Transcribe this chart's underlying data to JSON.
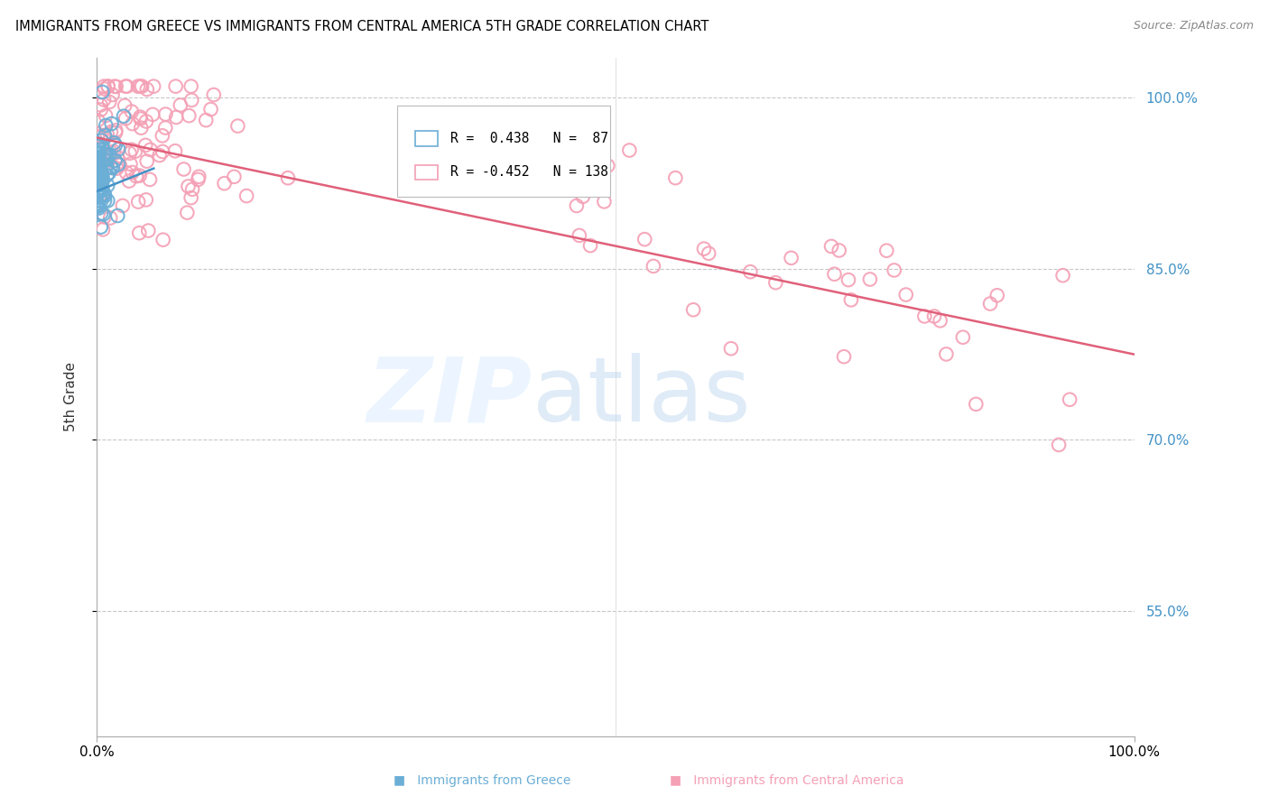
{
  "title": "IMMIGRANTS FROM GREECE VS IMMIGRANTS FROM CENTRAL AMERICA 5TH GRADE CORRELATION CHART",
  "source": "Source: ZipAtlas.com",
  "ylabel": "5th Grade",
  "color_blue": "#6baed6",
  "color_pink": "#f4a0b5",
  "color_trendline_blue": "#4292c6",
  "color_trendline_pink": "#e0607a",
  "color_right_axis": "#4292c6",
  "background_color": "#ffffff",
  "xlim": [
    0.0,
    1.0
  ],
  "ylim": [
    0.44,
    1.035
  ],
  "ytick_values": [
    1.0,
    0.85,
    0.7,
    0.55
  ],
  "ytick_labels": [
    "100.0%",
    "85.0%",
    "70.0%",
    "55.0%"
  ],
  "legend_r1_val": "0.438",
  "legend_n1_val": "87",
  "legend_r2_val": "-0.452",
  "legend_n2_val": "138",
  "trendline_blue_x0": 0.0,
  "trendline_blue_x1": 0.055,
  "trendline_blue_y0": 0.918,
  "trendline_blue_y1": 0.938,
  "trendline_pink_x0": 0.0,
  "trendline_pink_x1": 1.0,
  "trendline_pink_y0": 0.965,
  "trendline_pink_y1": 0.775
}
